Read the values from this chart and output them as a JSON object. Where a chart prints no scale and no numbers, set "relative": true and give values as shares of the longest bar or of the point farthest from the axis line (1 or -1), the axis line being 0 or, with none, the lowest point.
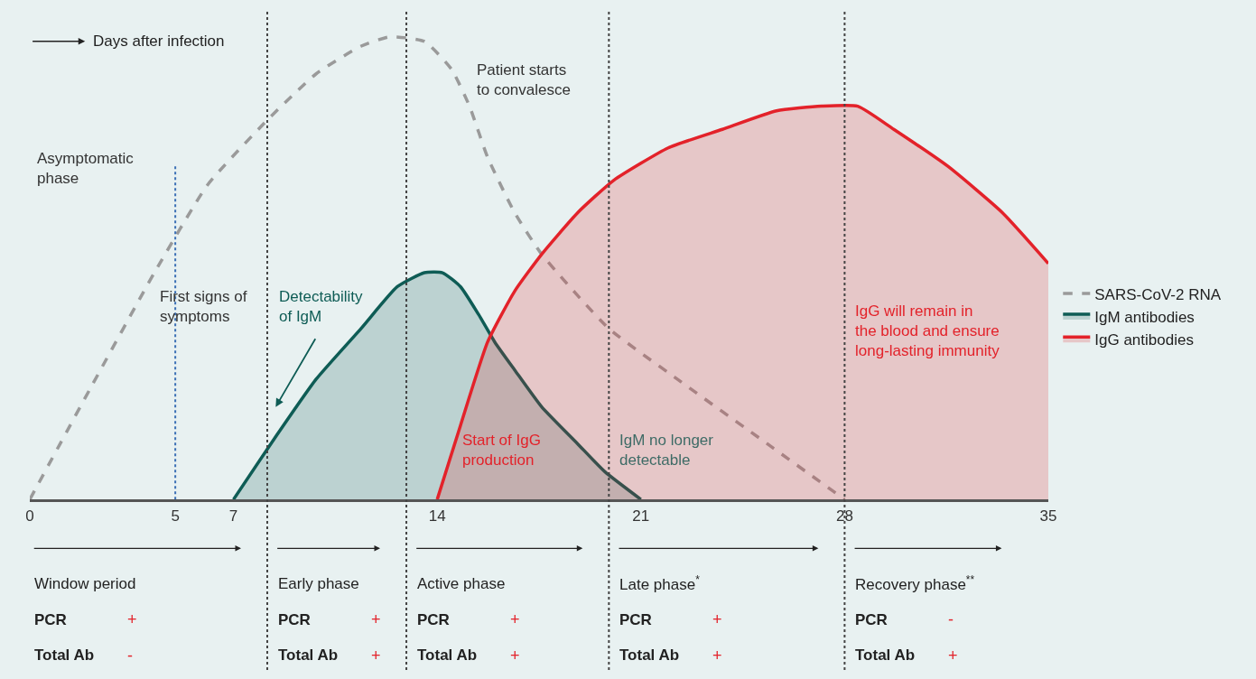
{
  "chart_data": {
    "type": "area",
    "relative": true,
    "xlim": [
      0,
      35
    ],
    "xticks": [
      0,
      5,
      7,
      14,
      21,
      28,
      35
    ],
    "legend": "right",
    "series": [
      {
        "name": "SARS-CoV-2 RNA",
        "type": "line",
        "line_style": "dashed",
        "color": "#9a9a9a",
        "x": [
          0,
          2.08,
          4.28,
          6.11,
          8.16,
          9.84,
          11.39,
          12.38,
          13.56,
          14.49,
          15.11,
          15.73,
          16.66,
          17.59,
          19.89,
          22.25,
          25.35,
          28
        ],
        "values": [
          0,
          0.24,
          0.49,
          0.68,
          0.82,
          0.92,
          0.98,
          1.0,
          0.99,
          0.93,
          0.85,
          0.74,
          0.62,
          0.53,
          0.37,
          0.26,
          0.12,
          0
        ]
      },
      {
        "name": "IgM antibodies",
        "line_style": "solid",
        "color": "#0e5c55",
        "x": [
          7,
          8.28,
          9.84,
          11.39,
          12.63,
          13.56,
          14.18,
          14.8,
          15.42,
          15.98,
          16.66,
          17.59,
          18.83,
          19.76,
          21
        ],
        "values": [
          0,
          0.12,
          0.26,
          0.37,
          0.46,
          0.49,
          0.49,
          0.46,
          0.4,
          0.34,
          0.28,
          0.2,
          0.12,
          0.06,
          0
        ]
      },
      {
        "name": "IgG antibodies",
        "line_style": "solid",
        "color": "#e3222a",
        "x": [
          14,
          14.8,
          15.73,
          16.66,
          17.59,
          18.83,
          20.07,
          21.94,
          23.8,
          25.66,
          27.21,
          28.45,
          29.69,
          31.55,
          33.42,
          35
        ],
        "values": [
          0,
          0.16,
          0.34,
          0.45,
          0.53,
          0.62,
          0.69,
          0.76,
          0.8,
          0.84,
          0.85,
          0.85,
          0.8,
          0.72,
          0.62,
          0.51
        ]
      }
    ],
    "ref_lines": [
      {
        "axis": "x",
        "value": 5,
        "color": "#3a6fb5",
        "line_style": "dotted"
      },
      {
        "axis": "x",
        "value": 8.16,
        "color": "#444444",
        "line_style": "dotted"
      },
      {
        "axis": "x",
        "value": 12.94,
        "color": "#444444",
        "line_style": "dotted"
      },
      {
        "axis": "x",
        "value": 19.9,
        "color": "#444444",
        "line_style": "dotted"
      },
      {
        "axis": "x",
        "value": 28,
        "color": "#444444",
        "line_style": "dotted"
      }
    ],
    "annotations": [
      "Days after infection",
      "Asymptomatic phase",
      "First signs of symptoms",
      "Detectability of IgM",
      "Patient starts to convalesce",
      "Start of IgG production",
      "IgM no longer detectable",
      "IgG will remain in the blood and ensure long-lasting immunity",
      "Window period",
      "PCR",
      "+",
      "Total Ab",
      "-",
      "Early phase",
      "PCR",
      "+",
      "Total Ab",
      "+",
      "Active phase",
      "PCR",
      "+",
      "Total Ab",
      "+",
      "Late phase$^{*}$",
      "PCR",
      "+",
      "Total Ab",
      "+",
      "Recovery phase$^{**}$",
      "PCR",
      "-",
      "Total Ab",
      "+"
    ]
  }
}
